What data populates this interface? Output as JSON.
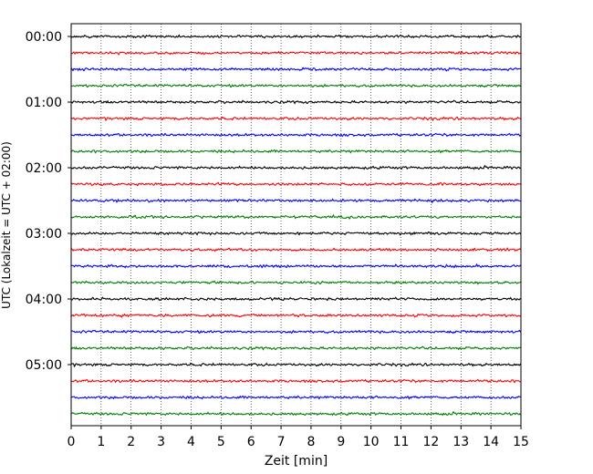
{
  "chart_data": {
    "type": "line",
    "title": "",
    "xlabel": "Zeit  [min]",
    "ylabel": "UTC (Lokalzeit = UTC + 02:00)",
    "xlim": [
      0,
      15
    ],
    "x_ticks": [
      0,
      1,
      2,
      3,
      4,
      5,
      6,
      7,
      8,
      9,
      10,
      11,
      12,
      13,
      14,
      15
    ],
    "y_tick_labels": [
      "00:00",
      "01:00",
      "02:00",
      "03:00",
      "04:00",
      "05:00"
    ],
    "row_interval_minutes": 15,
    "row_count": 24,
    "row_colors": [
      "#000000",
      "#ff0000",
      "#0000ff",
      "#008000"
    ],
    "grid": {
      "x": true,
      "style": "dotted"
    },
    "legend": "none"
  }
}
